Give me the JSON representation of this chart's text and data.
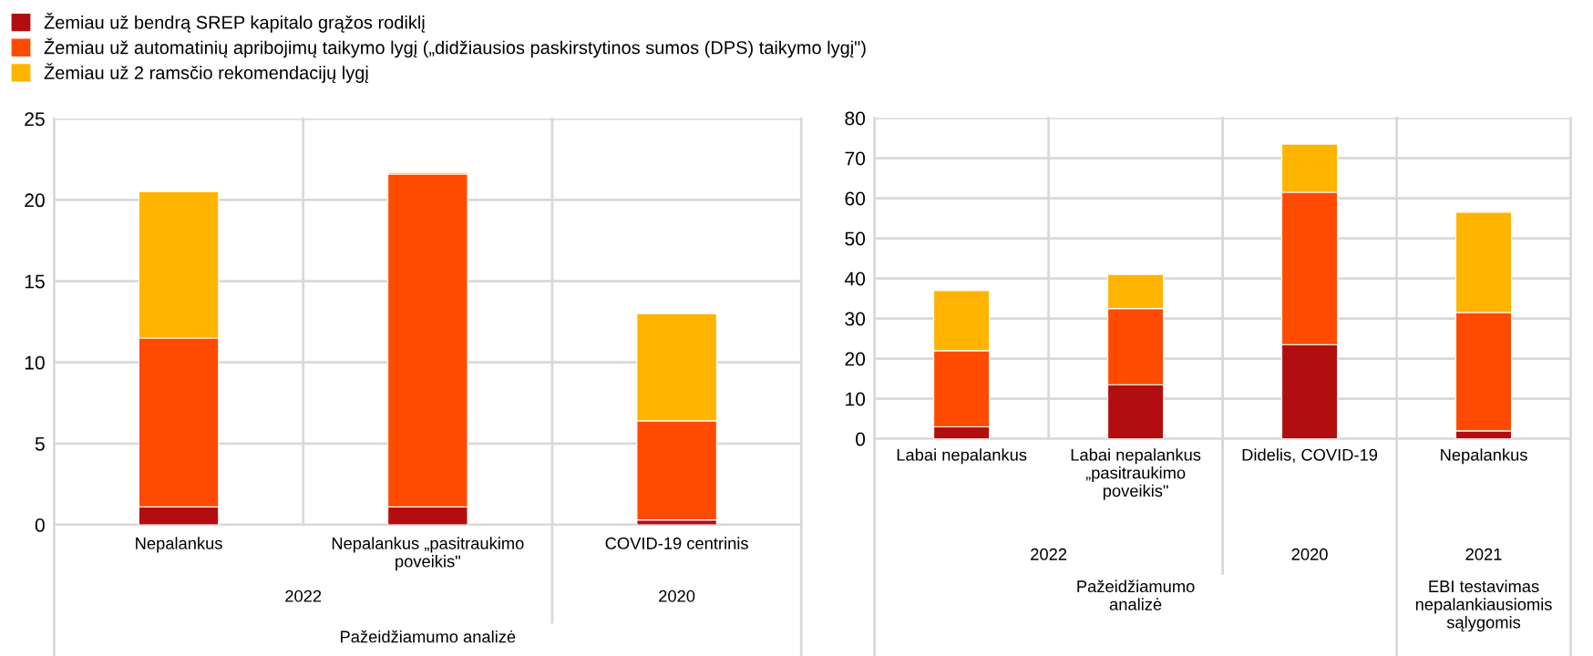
{
  "chart_data": [
    {
      "type": "bar",
      "stacked": true,
      "categories": [
        "Nepalankus",
        "Nepalankus „pasitraukimo poveikis\"",
        "COVID-19 centrinis"
      ],
      "ylim": [
        0,
        25
      ],
      "yticks": [
        0,
        5,
        10,
        15,
        20,
        25
      ],
      "grid": "y",
      "legend": "top",
      "series": [
        {
          "name": "Žemiau už bendrą SREP kapitalo grąžos rodiklį",
          "color": "#b20e10",
          "values": [
            1.1,
            1.1,
            0.3
          ]
        },
        {
          "name": "Žemiau už automatinių apribojimų taikymo lygį („didžiausios paskirstytinos sumos (DPS) taikymo lygį\")",
          "color": "#ff4b00",
          "values": [
            10.4,
            20.5,
            6.1
          ]
        },
        {
          "name": "Žemiau už 2 ramsčio rekomendacijų lygį",
          "color": "#ffb400",
          "values": [
            9.0,
            0.1,
            6.6
          ]
        }
      ],
      "annotations": [
        "2022",
        "2020",
        "Pažeidžiamumo analizė"
      ]
    },
    {
      "type": "bar",
      "stacked": true,
      "categories": [
        "Labai nepalankus",
        "Labai nepalankus „pasitraukimo poveikis\"",
        "Didelis, COVID-19",
        "Nepalankus"
      ],
      "ylim": [
        0,
        80
      ],
      "yticks": [
        0,
        10,
        20,
        30,
        40,
        50,
        60,
        70,
        80
      ],
      "grid": "y",
      "series": [
        {
          "color": "#b20e10",
          "values": [
            3,
            13.5,
            23.5,
            2
          ]
        },
        {
          "color": "#ff4b00",
          "values": [
            19,
            19,
            38,
            29.5
          ]
        },
        {
          "color": "#ffb400",
          "values": [
            15,
            8.5,
            12,
            25
          ]
        }
      ],
      "annotations": [
        "2022",
        "2020",
        "2021",
        "Pažeidžiamumo analizė",
        "EBI testavimas nepalankiausiomis sąlygomis"
      ]
    }
  ]
}
